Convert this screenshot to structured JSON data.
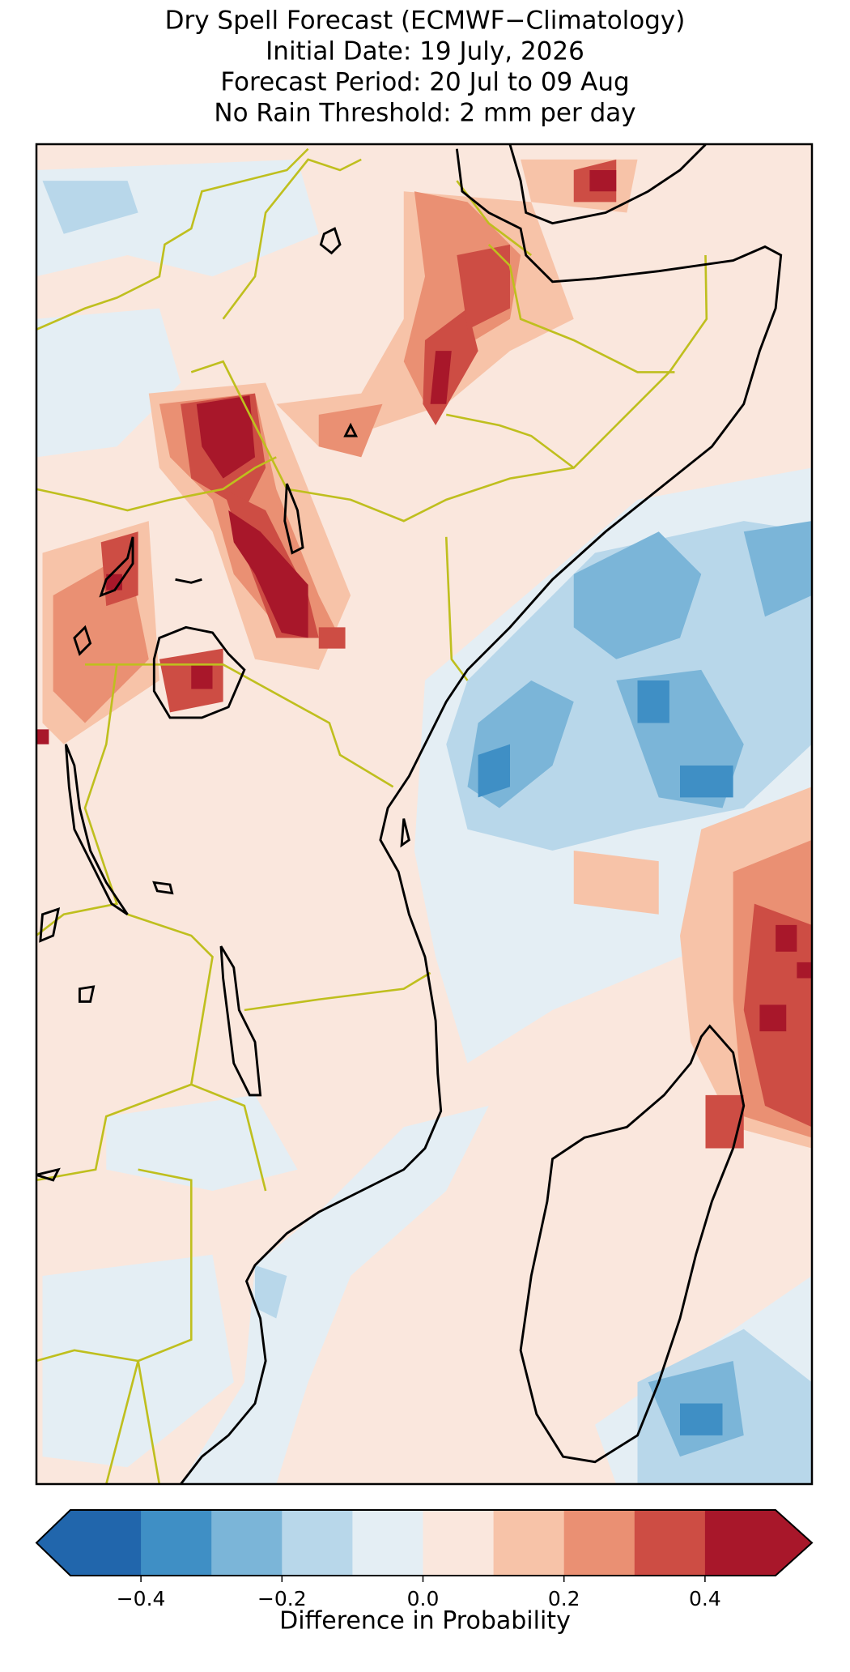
{
  "map": {
    "title_lines": [
      "Dry Spell Forecast (ECMWF−Climatology)",
      "Initial Date: 19 July, 2026",
      "Forecast Period: 20 Jul to 09 Aug",
      "No Rain Threshold: 2 mm per day"
    ],
    "colorbar": {
      "label": "Difference in Probability",
      "lim": [
        -0.5,
        0.5
      ],
      "bounds": [
        -0.5,
        -0.4,
        -0.3,
        -0.2,
        -0.1,
        0,
        0.1,
        0.2,
        0.3,
        0.4,
        0.5
      ],
      "colors": [
        "#2166ac",
        "#3f8fc5",
        "#7bb5d8",
        "#b8d7ea",
        "#e4eef4",
        "#fae7dd",
        "#f7c3a8",
        "#ea9073",
        "#cd4d44",
        "#a8172a"
      ],
      "ticks": [
        {
          "value": -0.4,
          "label": "−0.4"
        },
        {
          "value": -0.2,
          "label": "−0.2"
        },
        {
          "value": 0,
          "label": "0.0"
        },
        0.2,
        0.4
      ]
    }
  }
}
